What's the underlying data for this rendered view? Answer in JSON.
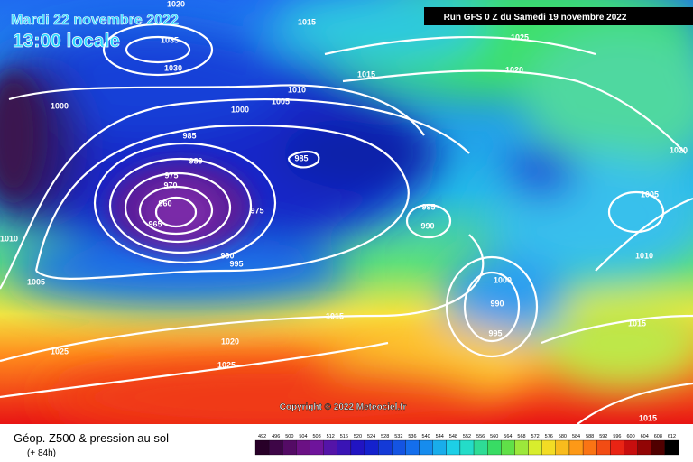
{
  "header": {
    "date": "Mardi 22 novembre 2022",
    "time": "13:00 locale",
    "run": "Run GFS 0 Z du Samedi 19 novembre 2022"
  },
  "map": {
    "pressure_labels": [
      1020,
      1015,
      1035,
      1030,
      1025,
      1020,
      1015,
      1010,
      1005,
      1000,
      1000,
      985,
      980,
      985,
      975,
      970,
      960,
      965,
      975,
      990,
      995,
      995,
      990,
      1005,
      1020,
      1010,
      1010,
      1005,
      1000,
      990,
      995,
      1015,
      1015,
      1020,
      1025,
      1025,
      1015
    ],
    "copyright": "Copyright © 2022 Meteociel.fr"
  },
  "footer": {
    "title": "Géop. Z500 & pression au sol",
    "lead": "(+ 84h)",
    "scale": [
      492,
      496,
      500,
      504,
      508,
      512,
      516,
      520,
      524,
      528,
      532,
      536,
      540,
      544,
      548,
      552,
      556,
      560,
      564,
      568,
      572,
      576,
      580,
      584,
      588,
      592,
      596,
      600,
      604,
      608,
      612
    ]
  }
}
